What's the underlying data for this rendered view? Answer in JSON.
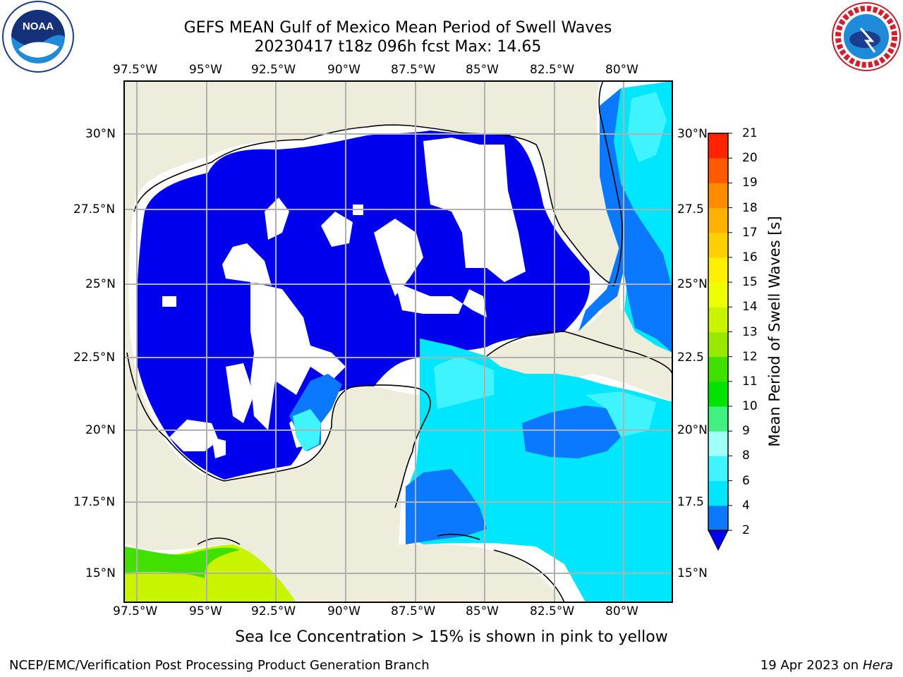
{
  "header": {
    "title_line1": "GEFS MEAN Gulf of Mexico Mean Period of Swell Waves",
    "title_line2": "20230417 t18z 096h fcst   Max: 14.65"
  },
  "logos": {
    "left": "noaa-logo",
    "right": "nws-logo"
  },
  "map": {
    "lon_labels": [
      "97.5°W",
      "95°W",
      "92.5°W",
      "90°W",
      "87.5°W",
      "85°W",
      "82.5°W",
      "80°W"
    ],
    "lat_labels": [
      "30°N",
      "27.5°N",
      "25°N",
      "22.5°N",
      "20°N",
      "17.5°N",
      "15°N"
    ],
    "lat_labels_right": [
      "30°N",
      "27.5",
      "25°N",
      "22.5",
      "20°N",
      "17.5",
      "15°N"
    ],
    "colors": {
      "land": "#eeeddc",
      "grid": "#b0b0b0",
      "coast": "#000000"
    }
  },
  "colorbar": {
    "title": "Mean Period of Swell Waves [s]",
    "ticks": [
      "2",
      "4",
      "6",
      "8",
      "9",
      "10",
      "11",
      "12",
      "13",
      "14",
      "15",
      "16",
      "17",
      "18",
      "19",
      "20",
      "21"
    ],
    "colors": [
      "#0000ee",
      "#0a78ff",
      "#00e6ff",
      "#40f4ff",
      "#a0fff6",
      "#40f080",
      "#00e400",
      "#40e000",
      "#98e800",
      "#c8f400",
      "#eeff00",
      "#fff000",
      "#ffd000",
      "#ffb000",
      "#ff8c00",
      "#ff5a00",
      "#ff2400",
      "#ff0000"
    ]
  },
  "footer": {
    "note": "Sea Ice Concentration > 15% is shown in pink to yellow",
    "credit": "NCEP/EMC/Verification Post Processing Product Generation Branch",
    "date": "19 Apr 2023 on",
    "host": "Hera"
  }
}
